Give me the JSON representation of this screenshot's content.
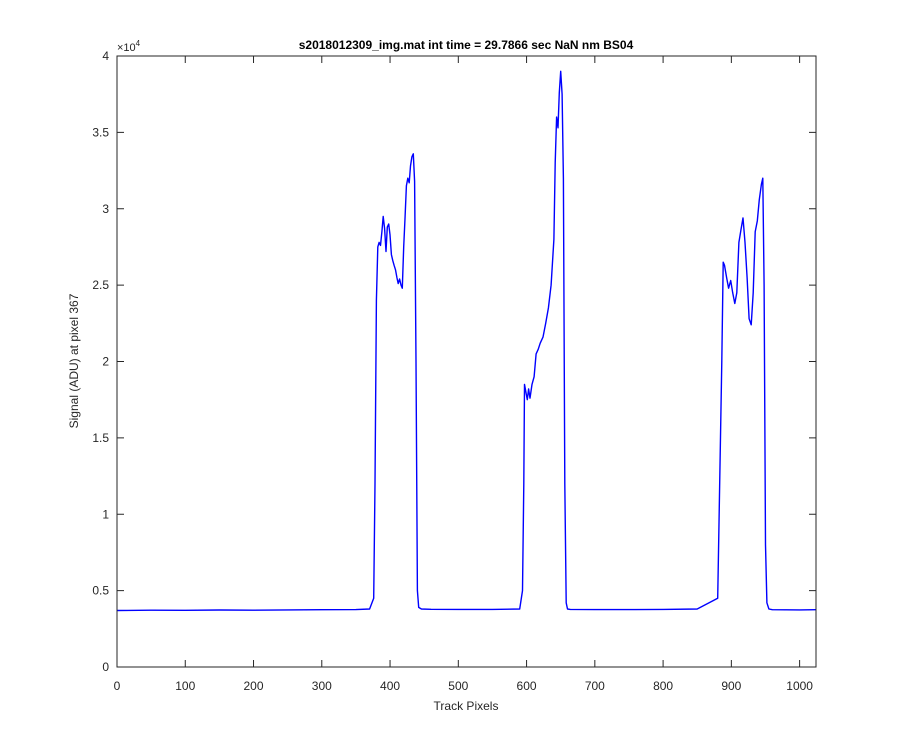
{
  "chart_data": {
    "type": "line",
    "title": "s2018012309_img.mat int time = 29.7866 sec  NaN nm BS04",
    "xlabel": "Track Pixels",
    "ylabel": "Signal (ADU) at pixel 367",
    "y_exponent": "×10",
    "y_exponent_power": "4",
    "xlim": [
      0,
      1024
    ],
    "ylim": [
      0,
      40000
    ],
    "x_ticks": [
      0,
      100,
      200,
      300,
      400,
      500,
      600,
      700,
      800,
      900,
      1000
    ],
    "x_tick_labels": [
      "0",
      "100",
      "200",
      "300",
      "400",
      "500",
      "600",
      "700",
      "800",
      "900",
      "1000"
    ],
    "y_ticks": [
      0,
      5000,
      10000,
      15000,
      20000,
      25000,
      30000,
      35000,
      40000
    ],
    "y_tick_labels": [
      "0",
      "0.5",
      "1",
      "1.5",
      "2",
      "2.5",
      "3",
      "3.5",
      "4"
    ],
    "grid": false,
    "line_color": "#0000ff",
    "series": [
      {
        "x": [
          0,
          50,
          100,
          150,
          200,
          250,
          300,
          350,
          370,
          376,
          378,
          380,
          382,
          384,
          386,
          388,
          390,
          392,
          394,
          396,
          398,
          400,
          402,
          404,
          406,
          408,
          410,
          412,
          414,
          416,
          418,
          420,
          422,
          424,
          426,
          428,
          430,
          432,
          434,
          436,
          438,
          440,
          442,
          446,
          460,
          500,
          550,
          590,
          594,
          596,
          597,
          599,
          601,
          603,
          605,
          608,
          611,
          614,
          617,
          620,
          624,
          628,
          632,
          636,
          640,
          642,
          644,
          646,
          648,
          650,
          652,
          654,
          656,
          658,
          660,
          664,
          700,
          750,
          800,
          850,
          880,
          886,
          888,
          890,
          893,
          896,
          899,
          902,
          905,
          908,
          911,
          914,
          917,
          920,
          923,
          926,
          929,
          932,
          935,
          938,
          941,
          944,
          946,
          948,
          950,
          952,
          955,
          960,
          1000,
          1024
        ],
        "y": [
          3700,
          3720,
          3710,
          3730,
          3720,
          3740,
          3750,
          3760,
          3800,
          4500,
          12000,
          24000,
          27500,
          27800,
          27600,
          28500,
          29500,
          28700,
          27200,
          28800,
          29000,
          28300,
          27000,
          26600,
          26300,
          26000,
          25500,
          25100,
          25400,
          25000,
          24800,
          27500,
          29500,
          31500,
          32000,
          31700,
          32800,
          33400,
          33600,
          31800,
          20000,
          5000,
          3900,
          3800,
          3780,
          3770,
          3770,
          3800,
          5000,
          12000,
          18500,
          18000,
          17500,
          18200,
          17600,
          18500,
          19000,
          20500,
          20800,
          21200,
          21600,
          22500,
          23500,
          25000,
          28000,
          33000,
          36000,
          35300,
          37600,
          39000,
          37500,
          32000,
          12000,
          4200,
          3800,
          3770,
          3760,
          3760,
          3770,
          3800,
          4500,
          20000,
          26500,
          26300,
          25500,
          24800,
          25300,
          24500,
          23800,
          24500,
          27800,
          28600,
          29400,
          27800,
          25500,
          22800,
          22400,
          24500,
          28500,
          29200,
          30600,
          31600,
          32000,
          25000,
          8000,
          4200,
          3800,
          3750,
          3740,
          3750
        ]
      }
    ]
  }
}
